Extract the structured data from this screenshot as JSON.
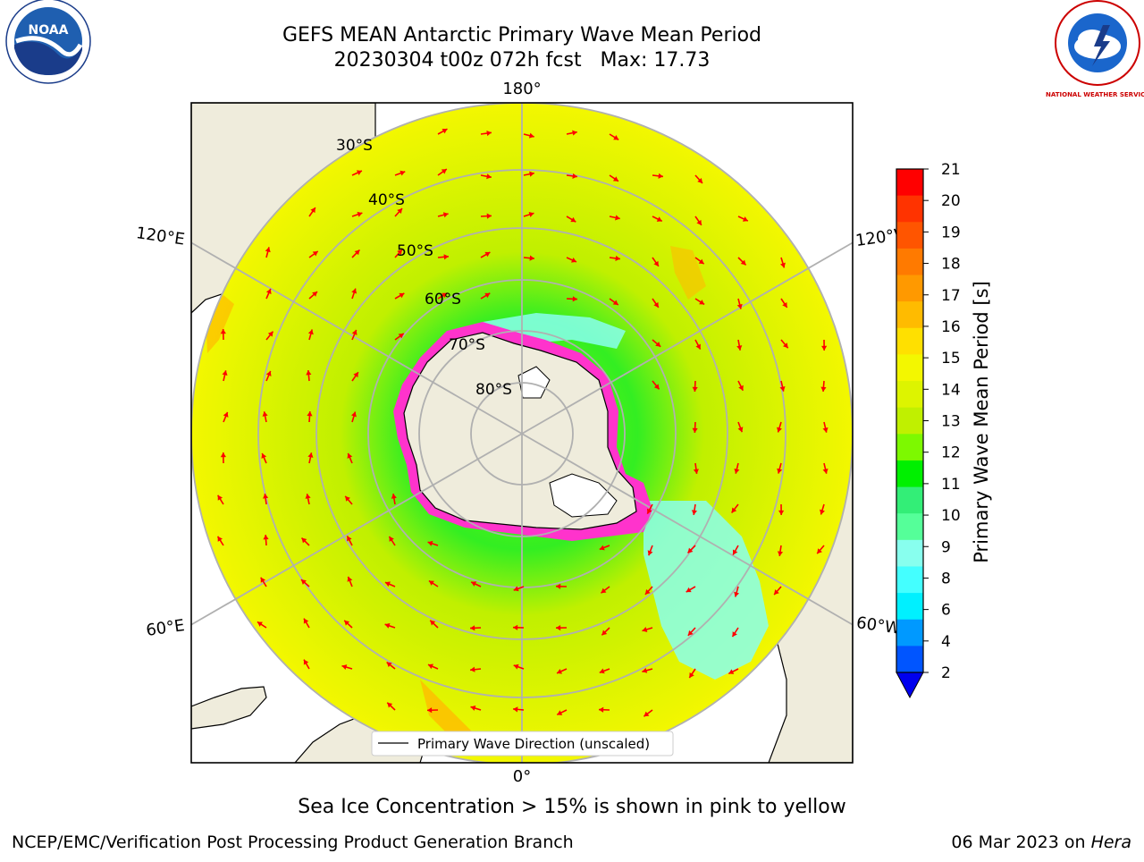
{
  "header": {
    "title_line1": "GEFS MEAN Antarctic Primary Wave Mean Period",
    "title_line2": "20230304 t00z 072h fcst   Max: 17.73"
  },
  "logos": {
    "left": {
      "icon": "noaa-logo",
      "text": "NOAA"
    },
    "right": {
      "icon": "nws-logo",
      "text": "NATIONAL WEATHER SERVICE"
    }
  },
  "map": {
    "projection": "south-polar-stereographic",
    "meridian_labels": {
      "top": "180°",
      "bottom": "0°",
      "left_upper": "120°E",
      "left_lower": "60°E",
      "right_upper": "120°W",
      "right_lower": "60°W"
    },
    "latitude_labels": [
      "30°S",
      "40°S",
      "50°S",
      "60°S",
      "70°S",
      "80°S"
    ],
    "legend_label": "Primary Wave Direction (unscaled)",
    "colors": {
      "land": "#efecdc",
      "ice_pink": "#ff33cc",
      "arrow": "#ff0000",
      "grid": "#b0b0b0"
    }
  },
  "colorbar": {
    "label": "Primary Wave Mean Period [s]",
    "ticks": [
      "21",
      "20",
      "19",
      "18",
      "17",
      "16",
      "15",
      "14",
      "13",
      "12",
      "11",
      "10",
      "9",
      "8",
      "6",
      "4",
      "2"
    ],
    "colors_top_to_bottom": [
      "#ff0000",
      "#ff3300",
      "#ff5500",
      "#ff7a00",
      "#ff9900",
      "#ffbb00",
      "#ffe000",
      "#f3f700",
      "#ddf400",
      "#c0f000",
      "#7df900",
      "#00f000",
      "#33ee77",
      "#55ff99",
      "#88ffee",
      "#44ffff",
      "#00f0ff",
      "#0099ff",
      "#0055ff"
    ],
    "extend_color": "#0000ee"
  },
  "footer": {
    "sea_ice_note": "Sea Ice Concentration > 15% is shown in pink to yellow",
    "credit": "NCEP/EMC/Verification Post Processing Product Generation Branch",
    "run_date_prefix": "06 Mar 2023 on ",
    "machine": "Hera"
  }
}
